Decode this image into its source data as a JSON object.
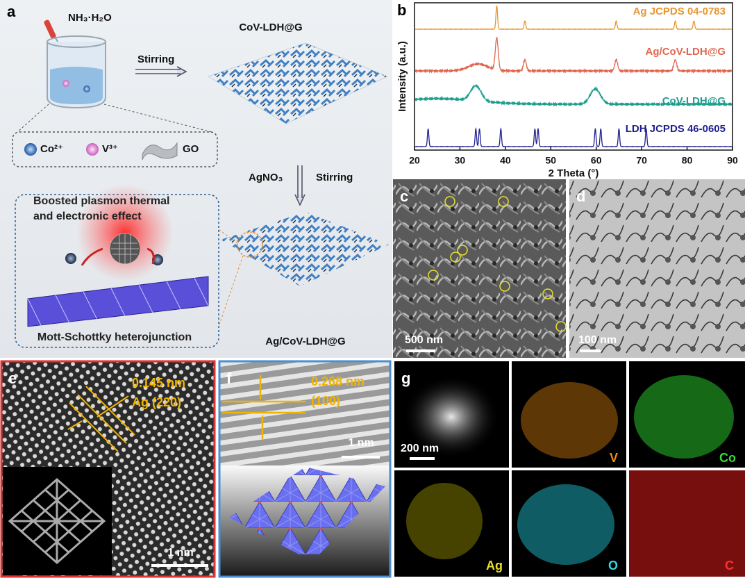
{
  "panel_a": {
    "label": "a",
    "reagent": "NH₃·H₂O",
    "step1": "Stirring",
    "product1": "CoV-LDH@G",
    "legend": [
      "Co²⁺",
      "V³⁺",
      "GO"
    ],
    "reagent2": "AgNO₃",
    "step2": "Stirring",
    "effect": [
      "Boosted plasmon thermal",
      "and electronic effect"
    ],
    "junction": "Mott-Schottky heterojunction",
    "product2": "Ag/CoV-LDH@G"
  },
  "chart_data": {
    "type": "line",
    "label": "b",
    "xlabel": "2 Theta (°)",
    "ylabel": "Intensity (a.u.)",
    "xlim": [
      20,
      90
    ],
    "xticks": [
      20,
      30,
      40,
      50,
      60,
      70,
      80,
      90
    ],
    "series": [
      {
        "name": "Ag JCPDS 04-0783",
        "color": "#e8962e",
        "peaks": [
          38.1,
          44.3,
          64.4,
          77.4,
          81.5
        ]
      },
      {
        "name": "Ag/CoV-LDH@G",
        "color": "#e0674f",
        "peaks": [
          38.1,
          44.3,
          64.4,
          77.4
        ]
      },
      {
        "name": "CoV-LDH@G",
        "color": "#1f9e8f",
        "peaks": [
          33.5,
          59.8
        ]
      },
      {
        "name": "LDH JCPDS 46-0605",
        "color": "#1f1f8f",
        "peaks": [
          23,
          33.5,
          34.3,
          39,
          46.5,
          47.2,
          59.8,
          61,
          65,
          71
        ]
      }
    ]
  },
  "panel_c": {
    "label": "c",
    "scale": "500 nm"
  },
  "panel_d": {
    "label": "d",
    "scale": "100 nm"
  },
  "panel_e": {
    "label": "e",
    "spacing": "0.145 nm",
    "plane": "Ag (220)",
    "scale": "1 nm"
  },
  "panel_f": {
    "label": "f",
    "spacing": "0.268 nm",
    "plane": "(100)",
    "scale": "1 nm"
  },
  "panel_g": {
    "label": "g",
    "scale": "200 nm",
    "elements": [
      "V",
      "Co",
      "Ag",
      "O",
      "C"
    ]
  }
}
